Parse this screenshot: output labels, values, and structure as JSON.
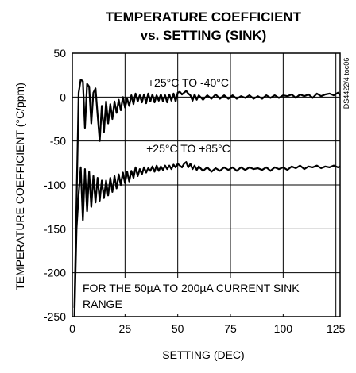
{
  "chart_data": {
    "type": "line",
    "title": [
      "TEMPERATURE COEFFICIENT",
      "vs. SETTING (SINK)"
    ],
    "xlabel": "SETTING (DEC)",
    "ylabel": "TEMPERATURE COEFFICIENT (°C/ppm)",
    "xlim": [
      0,
      127
    ],
    "ylim": [
      -250,
      50
    ],
    "x_ticks": [
      0,
      25,
      50,
      75,
      100,
      125
    ],
    "y_ticks": [
      50,
      0,
      -50,
      -100,
      -150,
      -200,
      -250
    ],
    "grid": true,
    "side_label": "DS4422/4 toc06",
    "annotation": [
      "FOR THE 50µA TO 200µA CURRENT SINK",
      "RANGE"
    ],
    "series": [
      {
        "name": "+25°C TO -40°C",
        "x": [
          1,
          2,
          3,
          4,
          5,
          6,
          7,
          8,
          9,
          10,
          11,
          12,
          13,
          14,
          15,
          16,
          17,
          18,
          19,
          20,
          21,
          22,
          23,
          24,
          25,
          26,
          27,
          28,
          29,
          30,
          31,
          32,
          33,
          34,
          35,
          36,
          37,
          38,
          39,
          40,
          41,
          42,
          43,
          44,
          45,
          46,
          47,
          48,
          49,
          50,
          51,
          52,
          53,
          54,
          55,
          56,
          57,
          58,
          59,
          60,
          62,
          64,
          66,
          68,
          70,
          72,
          74,
          76,
          78,
          80,
          82,
          84,
          86,
          88,
          90,
          92,
          94,
          96,
          98,
          100,
          102,
          104,
          106,
          108,
          110,
          112,
          114,
          116,
          118,
          120,
          122,
          124,
          126,
          127
        ],
        "y": [
          -240,
          -120,
          5,
          20,
          18,
          -35,
          15,
          12,
          -30,
          5,
          10,
          -20,
          -50,
          -10,
          -40,
          -5,
          -30,
          -8,
          -25,
          -5,
          -18,
          -3,
          -15,
          0,
          -12,
          -2,
          -10,
          2,
          -8,
          4,
          -5,
          2,
          -6,
          3,
          -7,
          4,
          -5,
          3,
          -6,
          2,
          -4,
          3,
          -5,
          2,
          -6,
          3,
          -4,
          4,
          -5,
          5,
          6,
          3,
          5,
          7,
          4,
          2,
          -4,
          3,
          -3,
          2,
          -3,
          2,
          -2,
          3,
          -2,
          2,
          -2,
          2,
          -2,
          1,
          -1,
          2,
          -2,
          1,
          -2,
          2,
          -1,
          2,
          -1,
          2,
          1,
          3,
          -1,
          3,
          1,
          3,
          -1,
          4,
          1,
          3,
          4,
          2,
          5,
          2
        ]
      },
      {
        "name": "+25°C TO +85°C",
        "x": [
          1,
          2,
          3,
          4,
          5,
          6,
          7,
          8,
          9,
          10,
          11,
          12,
          13,
          14,
          15,
          16,
          17,
          18,
          19,
          20,
          21,
          22,
          23,
          24,
          25,
          26,
          27,
          28,
          29,
          30,
          31,
          32,
          33,
          34,
          35,
          36,
          37,
          38,
          39,
          40,
          41,
          42,
          43,
          44,
          45,
          46,
          47,
          48,
          49,
          50,
          51,
          52,
          53,
          54,
          55,
          56,
          57,
          58,
          59,
          60,
          62,
          64,
          66,
          68,
          70,
          72,
          74,
          76,
          78,
          80,
          82,
          84,
          86,
          88,
          90,
          92,
          94,
          96,
          98,
          100,
          102,
          104,
          106,
          108,
          110,
          112,
          114,
          116,
          118,
          120,
          122,
          124,
          126,
          127
        ],
        "y": [
          -250,
          -150,
          -110,
          -80,
          -140,
          -82,
          -130,
          -85,
          -125,
          -90,
          -120,
          -92,
          -118,
          -95,
          -115,
          -95,
          -112,
          -92,
          -108,
          -90,
          -104,
          -88,
          -100,
          -86,
          -98,
          -85,
          -96,
          -84,
          -92,
          -80,
          -90,
          -82,
          -88,
          -80,
          -86,
          -81,
          -84,
          -79,
          -85,
          -78,
          -84,
          -79,
          -83,
          -78,
          -82,
          -78,
          -82,
          -77,
          -80,
          -76,
          -78,
          -80,
          -76,
          -74,
          -80,
          -76,
          -82,
          -78,
          -83,
          -79,
          -84,
          -80,
          -85,
          -81,
          -84,
          -80,
          -83,
          -80,
          -84,
          -80,
          -83,
          -80,
          -82,
          -81,
          -83,
          -80,
          -84,
          -80,
          -82,
          -80,
          -83,
          -79,
          -81,
          -78,
          -82,
          -79,
          -80,
          -78,
          -81,
          -79,
          -80,
          -78,
          -80,
          -79
        ]
      }
    ]
  }
}
